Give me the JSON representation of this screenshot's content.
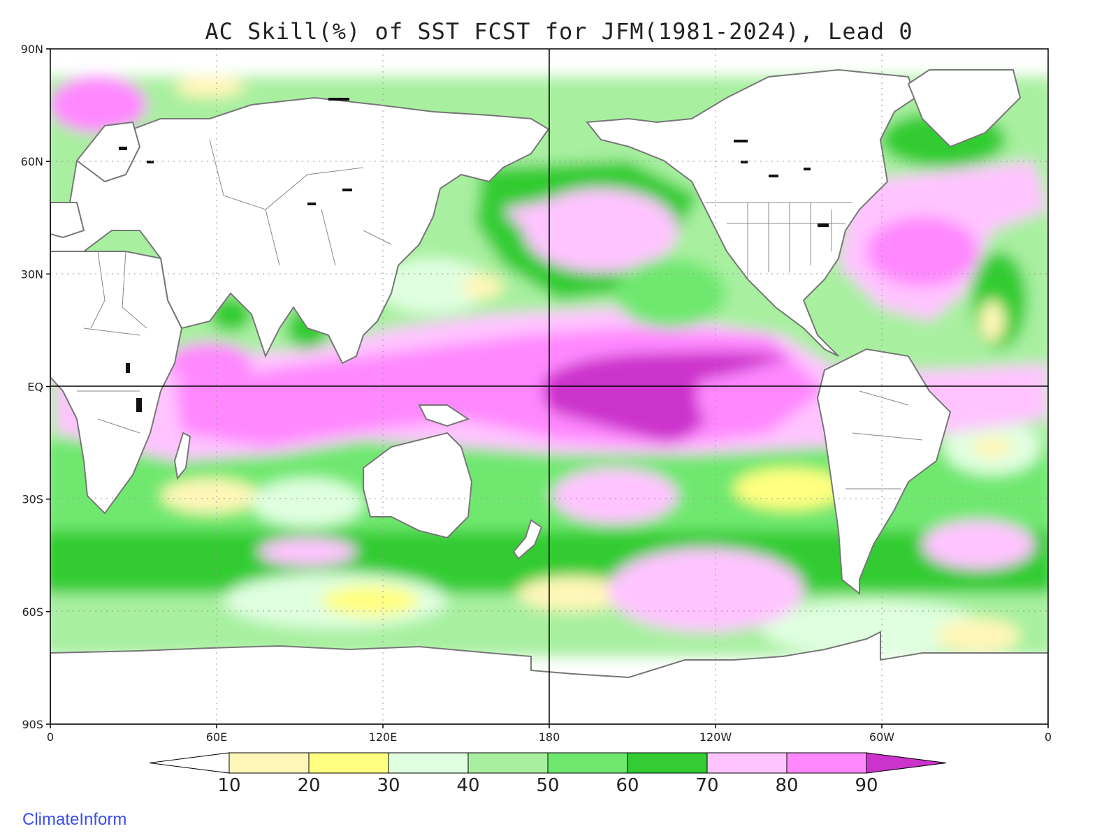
{
  "title": "AC Skill(%) of SST FCST for JFM(1981-2024), Lead 0",
  "credit": "ClimateInform",
  "axes": {
    "lat_ticks": [
      {
        "value": 90,
        "label": "90N"
      },
      {
        "value": 60,
        "label": "60N"
      },
      {
        "value": 30,
        "label": "30N"
      },
      {
        "value": 0,
        "label": "EQ"
      },
      {
        "value": -30,
        "label": "30S"
      },
      {
        "value": -60,
        "label": "60S"
      },
      {
        "value": -90,
        "label": "90S"
      }
    ],
    "lon_ticks": [
      {
        "value": 0,
        "label": "0"
      },
      {
        "value": 60,
        "label": "60E"
      },
      {
        "value": 120,
        "label": "120E"
      },
      {
        "value": 180,
        "label": "180"
      },
      {
        "value": 240,
        "label": "120W"
      },
      {
        "value": 300,
        "label": "60W"
      },
      {
        "value": 360,
        "label": "0"
      }
    ]
  },
  "colorbar": {
    "levels": [
      "10",
      "20",
      "30",
      "40",
      "50",
      "60",
      "70",
      "80",
      "90"
    ],
    "colors": [
      "#ffffff",
      "#fff7b8",
      "#ffff80",
      "#e0ffe0",
      "#a8f0a0",
      "#70e870",
      "#33cc33",
      "#ffc4ff",
      "#ff88ff",
      "#cc33cc"
    ]
  },
  "colors": {
    "land": "#ffffff",
    "coast": "#777777",
    "border": "#888888",
    "lakes": "#111111"
  }
}
